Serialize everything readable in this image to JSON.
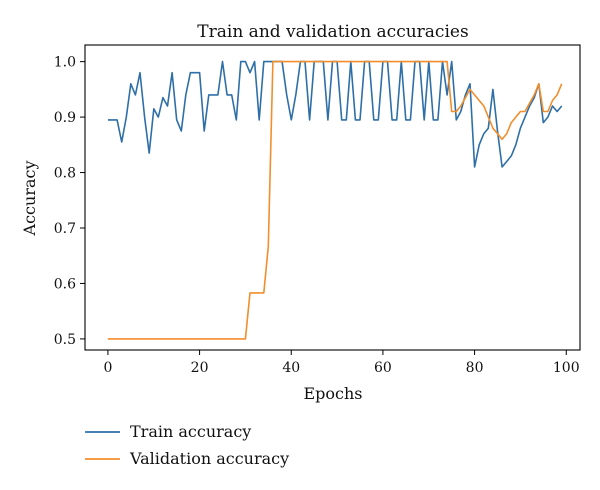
{
  "chart_data": {
    "type": "line",
    "title": "Train and validation accuracies",
    "xlabel": "Epochs",
    "ylabel": "Accuracy",
    "xlim": [
      -5,
      103
    ],
    "ylim": [
      0.48,
      1.03
    ],
    "xticks": [
      0,
      20,
      40,
      60,
      80,
      100
    ],
    "yticks": [
      0.5,
      0.6,
      0.7,
      0.8,
      0.9,
      1.0
    ],
    "xtick_labels": [
      "0",
      "20",
      "40",
      "60",
      "80",
      "100"
    ],
    "ytick_labels": [
      "0.5",
      "0.6",
      "0.7",
      "0.8",
      "0.9",
      "1.0"
    ],
    "grid": false,
    "legend_position": "bottom-left-outside",
    "series": [
      {
        "name": "Train accuracy",
        "color": "#2e6fa8",
        "x": [
          0,
          1,
          2,
          3,
          4,
          5,
          6,
          7,
          8,
          9,
          10,
          11,
          12,
          13,
          14,
          15,
          16,
          17,
          18,
          19,
          20,
          21,
          22,
          23,
          24,
          25,
          26,
          27,
          28,
          29,
          30,
          31,
          32,
          33,
          34,
          35,
          36,
          37,
          38,
          39,
          40,
          41,
          42,
          43,
          44,
          45,
          46,
          47,
          48,
          49,
          50,
          51,
          52,
          53,
          54,
          55,
          56,
          57,
          58,
          59,
          60,
          61,
          62,
          63,
          64,
          65,
          66,
          67,
          68,
          69,
          70,
          71,
          72,
          73,
          74,
          75,
          76,
          77,
          78,
          79,
          80,
          81,
          82,
          83,
          84,
          85,
          86,
          87,
          88,
          89,
          90,
          91,
          92,
          93,
          94,
          95,
          96,
          97,
          98,
          99
        ],
        "y": [
          0.895,
          0.895,
          0.895,
          0.855,
          0.9,
          0.96,
          0.94,
          0.98,
          0.9,
          0.835,
          0.915,
          0.9,
          0.935,
          0.92,
          0.98,
          0.895,
          0.875,
          0.94,
          0.98,
          0.98,
          0.98,
          0.875,
          0.94,
          0.94,
          0.94,
          1.0,
          0.94,
          0.94,
          0.895,
          1.0,
          1.0,
          0.98,
          1.0,
          0.895,
          1.0,
          1.0,
          1.0,
          1.0,
          1.0,
          0.94,
          0.895,
          0.94,
          1.0,
          1.0,
          0.895,
          1.0,
          1.0,
          1.0,
          0.895,
          1.0,
          1.0,
          0.895,
          0.895,
          1.0,
          0.895,
          0.895,
          1.0,
          1.0,
          0.895,
          0.895,
          1.0,
          1.0,
          0.895,
          0.895,
          1.0,
          0.895,
          0.895,
          1.0,
          1.0,
          0.895,
          1.0,
          0.895,
          0.895,
          1.0,
          0.94,
          1.0,
          0.895,
          0.91,
          0.94,
          0.96,
          0.81,
          0.85,
          0.87,
          0.88,
          0.95,
          0.875,
          0.81,
          0.82,
          0.83,
          0.85,
          0.88,
          0.9,
          0.92,
          0.935,
          0.96,
          0.89,
          0.9,
          0.92,
          0.91,
          0.92
        ]
      },
      {
        "name": "Validation accuracy",
        "color": "#f28e2b",
        "x": [
          0,
          1,
          2,
          3,
          4,
          5,
          6,
          7,
          8,
          9,
          10,
          11,
          12,
          13,
          14,
          15,
          16,
          17,
          18,
          19,
          20,
          21,
          22,
          23,
          24,
          25,
          26,
          27,
          28,
          29,
          30,
          31,
          32,
          33,
          34,
          35,
          36,
          37,
          38,
          39,
          40,
          41,
          42,
          43,
          44,
          45,
          46,
          47,
          48,
          49,
          50,
          51,
          52,
          53,
          54,
          55,
          56,
          57,
          58,
          59,
          60,
          61,
          62,
          63,
          64,
          65,
          66,
          67,
          68,
          69,
          70,
          71,
          72,
          73,
          74,
          75,
          76,
          77,
          78,
          79,
          80,
          81,
          82,
          83,
          84,
          85,
          86,
          87,
          88,
          89,
          90,
          91,
          92,
          93,
          94,
          95,
          96,
          97,
          98,
          99
        ],
        "y": [
          0.5,
          0.5,
          0.5,
          0.5,
          0.5,
          0.5,
          0.5,
          0.5,
          0.5,
          0.5,
          0.5,
          0.5,
          0.5,
          0.5,
          0.5,
          0.5,
          0.5,
          0.5,
          0.5,
          0.5,
          0.5,
          0.5,
          0.5,
          0.5,
          0.5,
          0.5,
          0.5,
          0.5,
          0.5,
          0.5,
          0.5,
          0.583,
          0.583,
          0.583,
          0.583,
          0.667,
          1.0,
          1.0,
          1.0,
          1.0,
          1.0,
          1.0,
          1.0,
          1.0,
          1.0,
          1.0,
          1.0,
          1.0,
          1.0,
          1.0,
          1.0,
          1.0,
          1.0,
          1.0,
          1.0,
          1.0,
          1.0,
          1.0,
          1.0,
          1.0,
          1.0,
          1.0,
          1.0,
          1.0,
          1.0,
          1.0,
          1.0,
          1.0,
          1.0,
          1.0,
          1.0,
          1.0,
          1.0,
          1.0,
          1.0,
          0.91,
          0.91,
          0.92,
          0.935,
          0.95,
          0.94,
          0.93,
          0.92,
          0.9,
          0.88,
          0.87,
          0.86,
          0.87,
          0.89,
          0.9,
          0.91,
          0.91,
          0.925,
          0.94,
          0.96,
          0.91,
          0.91,
          0.93,
          0.94,
          0.96
        ]
      }
    ]
  }
}
